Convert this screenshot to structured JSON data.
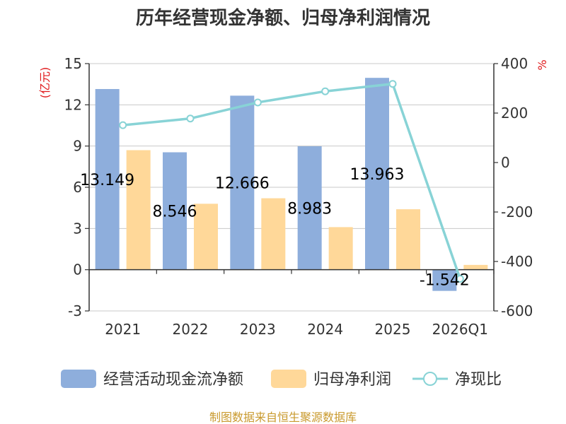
{
  "chart_data": {
    "type": "bar",
    "title": "历年经营现金净额、归母净利润情况",
    "categories": [
      "2021",
      "2022",
      "2023",
      "2024",
      "2025",
      "2026Q1"
    ],
    "left_axis": {
      "unit_label": "(亿元)",
      "ylim": [
        -3,
        15
      ],
      "ticks": [
        -3,
        0,
        3,
        6,
        9,
        12,
        15
      ],
      "tick_labels": [
        "-3",
        "0",
        "3",
        "6",
        "9",
        "12",
        "15"
      ]
    },
    "right_axis": {
      "unit_label": "%",
      "ylim": [
        -600,
        400
      ],
      "ticks": [
        -600,
        -400,
        -200,
        0,
        200,
        400
      ],
      "tick_labels": [
        "-600",
        "-400",
        "-200",
        "0",
        "200",
        "400"
      ]
    },
    "grid": true,
    "legend_position": "bottom",
    "series": [
      {
        "name": "经营活动现金流净额",
        "type": "bar",
        "axis": "left",
        "color": "#8eaedc",
        "values": [
          13.149,
          8.546,
          12.666,
          8.983,
          13.963,
          -1.542
        ],
        "labels": [
          "13.149",
          "8.546",
          "12.666",
          "8.983",
          "13.963",
          "-1.542"
        ]
      },
      {
        "name": "归母净利润",
        "type": "bar",
        "axis": "left",
        "color": "#ffd899",
        "values": [
          8.7,
          4.8,
          5.2,
          3.1,
          4.4,
          0.35
        ]
      },
      {
        "name": "净现比",
        "type": "line",
        "axis": "right",
        "color": "#88d3d6",
        "values": [
          151,
          178,
          243,
          288,
          318,
          -470
        ]
      }
    ],
    "source": "制图数据来自恒生聚源数据库"
  }
}
